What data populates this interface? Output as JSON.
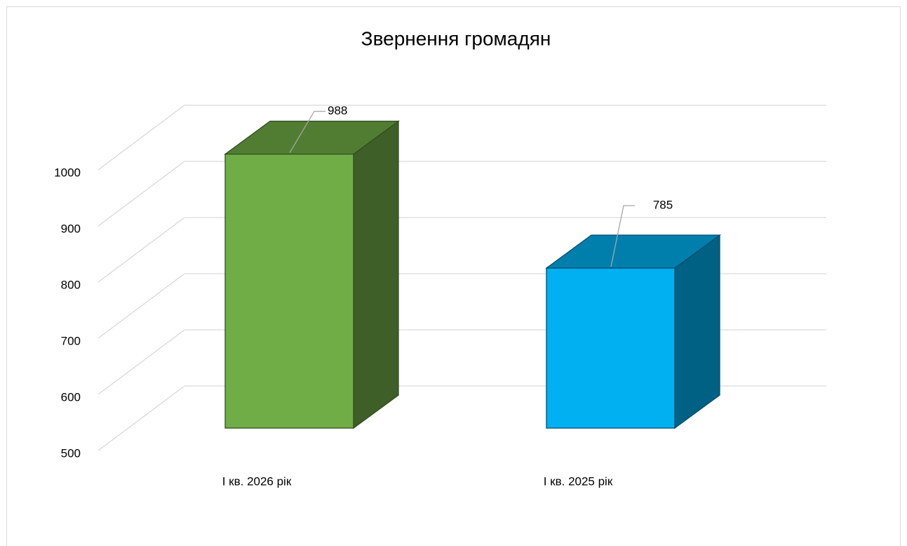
{
  "chart_data": {
    "type": "bar",
    "title": "Звернення громадян",
    "categories": [
      "І кв. 2026 рік",
      "І кв. 2025 рік"
    ],
    "values": [
      988,
      785
    ],
    "colors": [
      "#70ad47",
      "#00b0f0"
    ],
    "ylim": [
      500,
      1000
    ],
    "yticks": [
      500,
      600,
      700,
      800,
      900,
      1000
    ],
    "grid": true
  }
}
